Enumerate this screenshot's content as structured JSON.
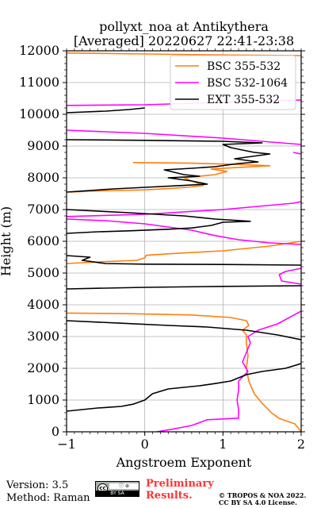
{
  "chart_data": {
    "type": "line",
    "title": "pollyxt_noa at Antikythera",
    "subtitle": "[Averaged] 20220627 22:41-23:38",
    "xlabel": "Angstroem Exponent",
    "ylabel": "Height (m)",
    "xlim": [
      -1,
      2
    ],
    "ylim": [
      0,
      12000
    ],
    "xticks": [
      "−1",
      "0",
      "1",
      "2"
    ],
    "yticks": [
      "0",
      "1000",
      "2000",
      "3000",
      "4000",
      "5000",
      "6000",
      "7000",
      "8000",
      "9000",
      "10000",
      "11000",
      "12000"
    ],
    "grid": true,
    "legend_position": "top-right",
    "series": [
      {
        "name": "BSC 355-532",
        "color": "#ff7f0e",
        "points": [
          [
            2.0,
            0
          ],
          [
            1.92,
            250
          ],
          [
            1.72,
            420
          ],
          [
            1.62,
            600
          ],
          [
            1.5,
            900
          ],
          [
            1.4,
            1200
          ],
          [
            1.33,
            1600
          ],
          [
            1.3,
            2000
          ],
          [
            1.32,
            2400
          ],
          [
            1.3,
            2800
          ],
          [
            1.3,
            3050
          ],
          [
            1.25,
            3200
          ],
          [
            1.33,
            3350
          ],
          [
            1.3,
            3500
          ],
          [
            1.1,
            3600
          ],
          [
            0.6,
            3680
          ],
          [
            -0.2,
            3720
          ],
          [
            -1.0,
            3740
          ],
          [
            null,
            null
          ],
          [
            -1.0,
            5300
          ],
          [
            -0.6,
            5350
          ],
          [
            -0.1,
            5400
          ],
          [
            0.0,
            5480
          ],
          [
            0.02,
            5560
          ],
          [
            0.4,
            5620
          ],
          [
            1.0,
            5700
          ],
          [
            1.6,
            5850
          ],
          [
            2.0,
            6000
          ],
          [
            null,
            null
          ],
          [
            -0.95,
            7550
          ],
          [
            -0.7,
            7580
          ],
          [
            -0.35,
            7600
          ],
          [
            0.0,
            7620
          ],
          [
            0.3,
            7660
          ],
          [
            0.55,
            7700
          ],
          [
            0.75,
            7760
          ],
          [
            0.6,
            7900
          ],
          [
            0.5,
            8000
          ],
          [
            0.9,
            8100
          ],
          [
            1.05,
            8200
          ],
          [
            0.85,
            8280
          ],
          [
            1.6,
            8380
          ],
          [
            1.2,
            8420
          ],
          [
            0.6,
            8460
          ],
          [
            -0.15,
            8480
          ],
          [
            null,
            null
          ],
          [
            -1.0,
            11930
          ],
          [
            0.0,
            11900
          ],
          [
            1.0,
            11870
          ],
          [
            2.0,
            11850
          ]
        ]
      },
      {
        "name": "BSC 532-1064",
        "color": "#ff00ff",
        "points": [
          [
            0.15,
            0
          ],
          [
            0.35,
            80
          ],
          [
            0.6,
            200
          ],
          [
            0.8,
            380
          ],
          [
            1.2,
            430
          ],
          [
            1.2,
            700
          ],
          [
            1.18,
            1000
          ],
          [
            1.2,
            1300
          ],
          [
            1.2,
            1600
          ],
          [
            1.32,
            1900
          ],
          [
            1.25,
            2200
          ],
          [
            1.3,
            2500
          ],
          [
            1.35,
            2800
          ],
          [
            1.32,
            3000
          ],
          [
            1.45,
            3200
          ],
          [
            1.7,
            3400
          ],
          [
            2.0,
            3800
          ],
          [
            null,
            null
          ],
          [
            2.0,
            4650
          ],
          [
            1.75,
            4750
          ],
          [
            1.72,
            4950
          ],
          [
            1.8,
            5050
          ],
          [
            1.9,
            5100
          ],
          [
            2.0,
            5150
          ],
          [
            null,
            null
          ],
          [
            2.0,
            5900
          ],
          [
            1.6,
            5950
          ],
          [
            1.2,
            6050
          ],
          [
            0.9,
            6180
          ],
          [
            0.6,
            6350
          ],
          [
            0.3,
            6450
          ],
          [
            0.0,
            6550
          ],
          [
            -0.5,
            6650
          ],
          [
            -1.0,
            6700
          ],
          [
            null,
            null
          ],
          [
            -1.0,
            6780
          ],
          [
            0.0,
            6850
          ],
          [
            1.0,
            7000
          ],
          [
            1.9,
            7200
          ],
          [
            2.0,
            7250
          ],
          [
            null,
            null
          ],
          [
            -1.0,
            9500
          ],
          [
            0.0,
            9400
          ],
          [
            1.0,
            9250
          ],
          [
            2.0,
            9050
          ],
          [
            null,
            null
          ],
          [
            1.9,
            8800
          ],
          [
            2.0,
            8750
          ],
          [
            null,
            null
          ],
          [
            -1.0,
            10280
          ],
          [
            0.0,
            10300
          ],
          [
            1.0,
            10380
          ],
          [
            2.0,
            10450
          ]
        ]
      },
      {
        "name": "EXT 355-532",
        "color": "#000000",
        "points": [
          [
            -1.0,
            650
          ],
          [
            -0.6,
            750
          ],
          [
            -0.3,
            800
          ],
          [
            -0.15,
            870
          ],
          [
            0.0,
            1000
          ],
          [
            0.05,
            1100
          ],
          [
            0.1,
            1200
          ],
          [
            0.3,
            1350
          ],
          [
            0.5,
            1400
          ],
          [
            0.7,
            1450
          ],
          [
            0.9,
            1520
          ],
          [
            1.1,
            1600
          ],
          [
            1.3,
            1800
          ],
          [
            1.5,
            1900
          ],
          [
            1.8,
            2000
          ],
          [
            2.0,
            2150
          ],
          [
            null,
            null
          ],
          [
            2.0,
            2900
          ],
          [
            1.7,
            3050
          ],
          [
            1.3,
            3200
          ],
          [
            0.8,
            3300
          ],
          [
            0.3,
            3350
          ],
          [
            -0.3,
            3420
          ],
          [
            -1.0,
            3500
          ],
          [
            null,
            null
          ],
          [
            -1.0,
            4500
          ],
          [
            0.0,
            4550
          ],
          [
            1.0,
            4580
          ],
          [
            2.0,
            4600
          ],
          [
            null,
            null
          ],
          [
            2.0,
            5250
          ],
          [
            1.0,
            5270
          ],
          [
            0.0,
            5280
          ],
          [
            -0.5,
            5300
          ],
          [
            -0.8,
            5400
          ],
          [
            -0.7,
            5500
          ],
          [
            -1.0,
            5550
          ],
          [
            null,
            null
          ],
          [
            -1.0,
            6250
          ],
          [
            -0.6,
            6300
          ],
          [
            -0.2,
            6330
          ],
          [
            0.3,
            6380
          ],
          [
            0.6,
            6420
          ],
          [
            0.85,
            6500
          ],
          [
            1.0,
            6600
          ],
          [
            1.35,
            6630
          ],
          [
            0.9,
            6700
          ],
          [
            0.5,
            6800
          ],
          [
            -0.2,
            6900
          ],
          [
            -1.0,
            7000
          ],
          [
            null,
            null
          ],
          [
            -1.0,
            7550
          ],
          [
            -0.4,
            7650
          ],
          [
            0.0,
            7700
          ],
          [
            0.5,
            7760
          ],
          [
            0.8,
            7800
          ],
          [
            0.6,
            7900
          ],
          [
            0.3,
            8000
          ],
          [
            0.7,
            8050
          ],
          [
            0.5,
            8100
          ],
          [
            0.25,
            8250
          ],
          [
            0.6,
            8300
          ],
          [
            0.9,
            8350
          ],
          [
            1.2,
            8450
          ],
          [
            1.45,
            8500
          ],
          [
            1.15,
            8600
          ],
          [
            1.6,
            8750
          ],
          [
            1.4,
            8800
          ],
          [
            1.1,
            8950
          ],
          [
            1.0,
            9050
          ],
          [
            1.5,
            9100
          ],
          [
            1.0,
            9150
          ],
          [
            0.0,
            9180
          ],
          [
            -1.0,
            9200
          ],
          [
            null,
            null
          ],
          [
            -1.0,
            10050
          ],
          [
            -0.5,
            10100
          ],
          [
            -0.2,
            10150
          ],
          [
            0.0,
            10200
          ]
        ]
      }
    ]
  },
  "footer": {
    "version": "Version: 3.5",
    "method": "Method: Raman",
    "preliminary_line1": "Preliminary",
    "preliminary_line2": "Results.",
    "copyright_line1": "© TROPOS & NOA 2022.",
    "copyright_line2": "CC BY SA 4.0 License.",
    "badge_by": "BY SA",
    "badge_cc": "cc",
    "badge_color": "#aab1ab",
    "preliminary_color": "#ff3333"
  }
}
